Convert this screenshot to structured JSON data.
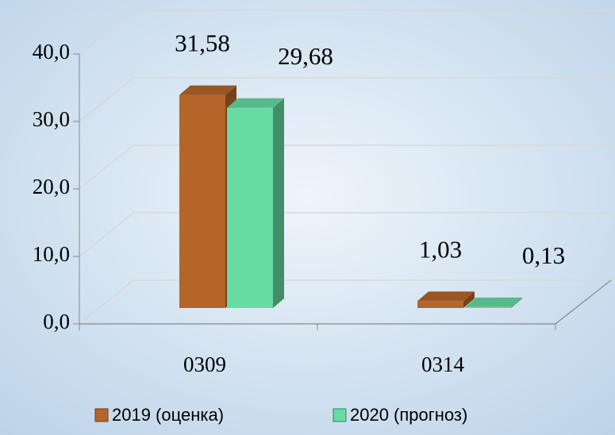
{
  "chart_data": {
    "type": "bar3d",
    "categories": [
      "0309",
      "0314"
    ],
    "series": [
      {
        "name": "2019 (оценка)",
        "color": "#b5652a",
        "values": [
          31.58,
          1.03
        ],
        "value_labels": [
          "31,58",
          "1,03"
        ]
      },
      {
        "name": "2020 (прогноз)",
        "color": "#66dba2",
        "values": [
          29.68,
          0.13
        ],
        "value_labels": [
          "29,68",
          "0,13"
        ]
      }
    ],
    "ylim": [
      0,
      40
    ],
    "yticks": [
      {
        "value": 0,
        "label": "0,0"
      },
      {
        "value": 10,
        "label": "10,0"
      },
      {
        "value": 20,
        "label": "20,0"
      },
      {
        "value": 30,
        "label": "30,0"
      },
      {
        "value": 40,
        "label": "40,0"
      }
    ],
    "grid": true,
    "legend": "bottom"
  }
}
